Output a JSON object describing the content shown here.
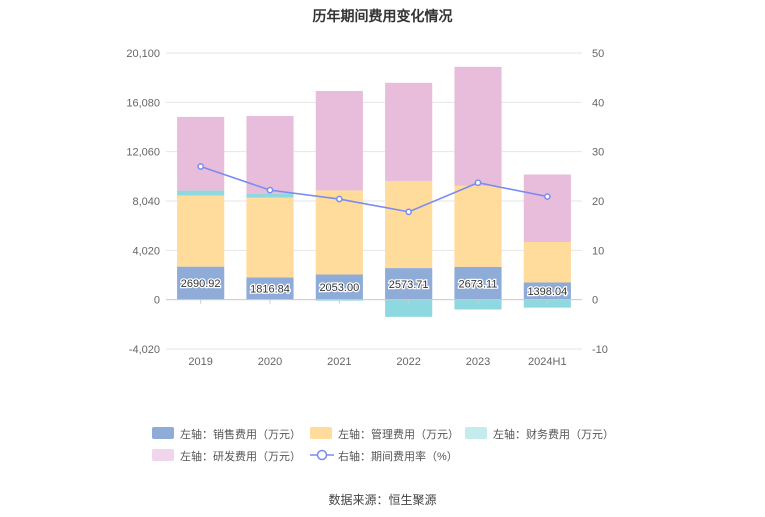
{
  "title": "历年期间费用变化情况",
  "source": "数据来源：恒生聚源",
  "legend": {
    "sales": "左轴：销售费用（万元）",
    "admin": "左轴：管理费用（万元）",
    "finance": "左轴：财务费用（万元）",
    "rd": "左轴：研发费用（万元）",
    "rate": "右轴：期间费用率（%）"
  },
  "colors": {
    "sales": "#8fabd8",
    "admin": "#ffdb9c",
    "finance": "#8ed8df",
    "rd": "#e8bddb",
    "rate": "#7b8cf0"
  },
  "chart_data": {
    "type": "bar",
    "stacked": true,
    "categories": [
      "2019",
      "2020",
      "2021",
      "2022",
      "2023",
      "2024H1"
    ],
    "left_axis": {
      "ylim": [
        -4020,
        20100
      ],
      "ticks": [
        "-4,020",
        "0",
        "4,020",
        "8,040",
        "12,060",
        "16,080",
        "20,100"
      ]
    },
    "right_axis": {
      "ylim": [
        -10,
        50
      ],
      "ticks": [
        "-10",
        "0",
        "10",
        "20",
        "30",
        "40",
        "50"
      ]
    },
    "series": [
      {
        "name": "左轴：销售费用（万元）",
        "key": "sales",
        "axis": "left",
        "kind": "bar",
        "values": [
          2690.92,
          1816.84,
          2053.0,
          2573.71,
          2673.11,
          1398.04
        ],
        "labels": [
          "2690.92",
          "1816.84",
          "2053.00",
          "2573.71",
          "2673.11",
          "1398.04"
        ]
      },
      {
        "name": "左轴：管理费用（万元）",
        "key": "admin",
        "axis": "left",
        "kind": "bar",
        "values": [
          5800,
          6500,
          6850,
          7100,
          6600,
          3300
        ]
      },
      {
        "name": "左轴：财务费用（万元）",
        "key": "finance",
        "axis": "left",
        "kind": "bar",
        "values": [
          400,
          350,
          -80,
          -1400,
          -800,
          -650
        ]
      },
      {
        "name": "左轴：研发费用（万元）",
        "key": "rd",
        "axis": "left",
        "kind": "bar",
        "values": [
          6000,
          6300,
          8100,
          8000,
          9700,
          5500
        ]
      },
      {
        "name": "右轴：期间费用率（%）",
        "key": "rate",
        "axis": "right",
        "kind": "line",
        "values": [
          27.0,
          22.2,
          20.4,
          17.8,
          23.7,
          20.9
        ]
      }
    ],
    "grid": true,
    "legend_position": "bottom"
  }
}
